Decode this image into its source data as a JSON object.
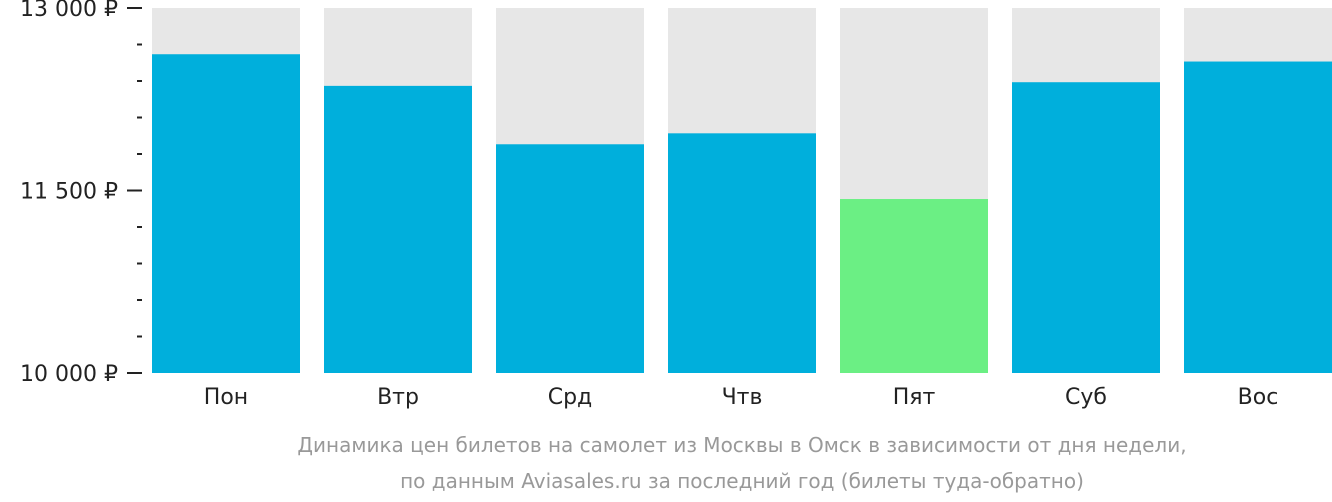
{
  "chart_data": {
    "type": "bar",
    "categories": [
      "Пон",
      "Втр",
      "Срд",
      "Чтв",
      "Пят",
      "Суб",
      "Вос"
    ],
    "values": [
      12620,
      12360,
      11880,
      11970,
      11430,
      12390,
      12560
    ],
    "highlight_index": 4,
    "ylim": [
      10000,
      13000
    ],
    "y_major_ticks": [
      {
        "value": 13000,
        "label": "13 000 ₽"
      },
      {
        "value": 11500,
        "label": "11 500 ₽"
      },
      {
        "value": 10000,
        "label": "10 000 ₽"
      }
    ],
    "y_minor_step": 300,
    "colors": {
      "bar": "#00afdc",
      "highlight": "#6bef84",
      "track": "#e7e7e7",
      "axis": "#222222",
      "caption": "#999999"
    },
    "caption": [
      "Динамика цен билетов на самолет из Москвы в Омск в зависимости от дня недели,",
      "по данным Aviasales.ru за последний год (билеты туда-обратно)"
    ]
  }
}
